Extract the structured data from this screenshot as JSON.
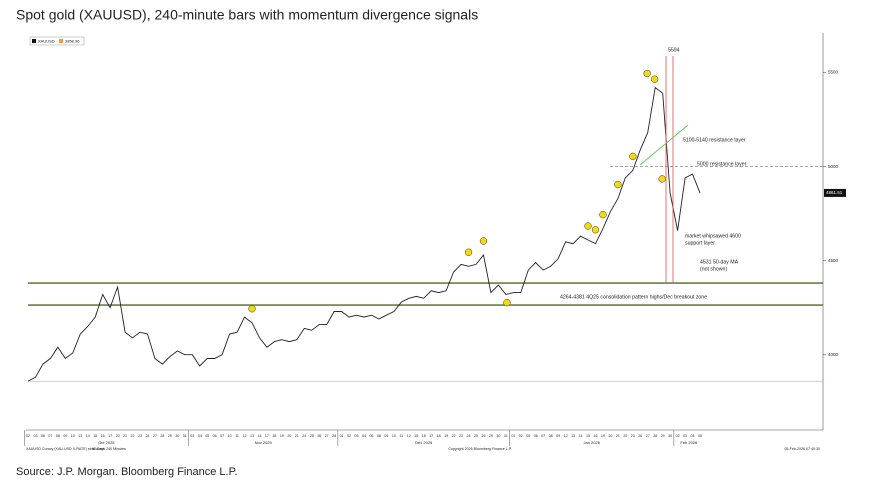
{
  "chart_data": {
    "type": "line",
    "title": "Spot gold (XAUUSD), 240-minute bars with momentum divergence signals",
    "source": "Source: J.P. Morgan. Bloomberg Finance L.P.",
    "legend": [
      {
        "name": "XAUUSD",
        "color": "#111111"
      },
      {
        "name": "3858.96",
        "color": "#f39c3c"
      }
    ],
    "categories": [
      "02",
      "03",
      "06",
      "07",
      "08",
      "09",
      "10",
      "13",
      "14",
      "15",
      "16",
      "17",
      "20",
      "21",
      "22",
      "23",
      "24",
      "27",
      "28",
      "29",
      "30",
      "31",
      "03",
      "04",
      "05",
      "06",
      "07",
      "10",
      "11",
      "12",
      "13",
      "14",
      "17",
      "18",
      "19",
      "20",
      "21",
      "24",
      "25",
      "26",
      "27",
      "28",
      "01",
      "02",
      "03",
      "04",
      "05",
      "08",
      "09",
      "10",
      "11",
      "12",
      "15",
      "16",
      "17",
      "18",
      "19",
      "22",
      "23",
      "24",
      "25",
      "26",
      "29",
      "30",
      "31",
      "01",
      "02",
      "05",
      "06",
      "07",
      "08",
      "09",
      "12",
      "13",
      "14",
      "15",
      "16",
      "19",
      "20",
      "21",
      "22",
      "23",
      "26",
      "27",
      "28",
      "29",
      "30",
      "02",
      "03",
      "04",
      "05"
    ],
    "months": [
      "Oct 2025",
      "Nov 2025",
      "Dec 2025",
      "Jan 2026",
      "Feb 2026"
    ],
    "series": [
      {
        "name": "XAUUSD",
        "color": "#222222",
        "values": [
          3860,
          3880,
          3950,
          3980,
          4040,
          3980,
          4010,
          4110,
          4150,
          4200,
          4320,
          4250,
          4360,
          4120,
          4090,
          4120,
          4110,
          3980,
          3950,
          3990,
          4020,
          4000,
          4000,
          3940,
          3980,
          3980,
          4000,
          4110,
          4120,
          4200,
          4170,
          4090,
          4040,
          4070,
          4080,
          4070,
          4080,
          4140,
          4130,
          4160,
          4160,
          4230,
          4230,
          4200,
          4210,
          4200,
          4210,
          4190,
          4210,
          4230,
          4280,
          4300,
          4310,
          4300,
          4340,
          4330,
          4340,
          4440,
          4480,
          4470,
          4480,
          4530,
          4330,
          4370,
          4320,
          4330,
          4330,
          4450,
          4490,
          4450,
          4470,
          4510,
          4600,
          4590,
          4630,
          4610,
          4590,
          4670,
          4760,
          4830,
          4940,
          4980,
          5090,
          5180,
          5420,
          5390,
          4860,
          4660,
          4940,
          4960,
          4860
        ]
      }
    ],
    "ylim": [
      3600,
      5710
    ],
    "yticks": [
      4000,
      4500,
      5000,
      5500
    ],
    "last_price": "4861.51",
    "reference_lines": [
      {
        "value": 4381,
        "color": "#4a6b1e"
      },
      {
        "value": 4264,
        "color": "#4a6b1e"
      },
      {
        "value": 3858.96,
        "color": "#f3b27a"
      },
      {
        "value": 5000,
        "color": "#888888"
      }
    ],
    "annotations": [
      "5594",
      "5100-5140 resistance layer",
      "5000 resistance layer",
      "market whipsawed 4600",
      "support layer",
      "4531 50-day MA",
      "(not shown)",
      "4264-4381 4Q25 consolidation pattern highs/Dec breakout zone"
    ],
    "footer": [
      "XAUUSD Curncy (XAU-USD X-RATE) strat chart",
      "90 Days 240 Minutes",
      "Copyright 2026 Bloomberg Finance L.P.",
      "05-Feb-2026 07:40:30"
    ]
  }
}
